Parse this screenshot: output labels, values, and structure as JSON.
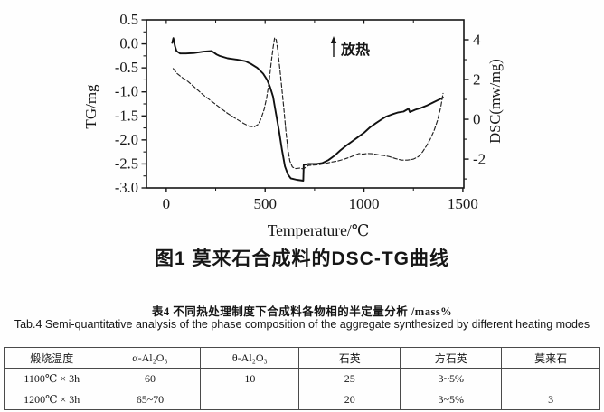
{
  "page": {
    "bg": "#fefefe",
    "ink": "#161616"
  },
  "figure": {
    "caption": "图1 莫来石合成料的DSC-TG曲线",
    "xlabel": "Temperature/℃",
    "ylabel_left": "TG/mg",
    "ylabel_right": "DSC(mw/mg)",
    "annotation_text": "放热",
    "annotation_icon": "up-arrow"
  },
  "chart_data": {
    "type": "line",
    "title": "图1 莫来石合成料的DSC-TG曲线",
    "xlabel": "Temperature/℃",
    "ylabel_left": "TG/mg",
    "ylabel_right": "DSC(mw/mg)",
    "xlim": [
      -100,
      1505
    ],
    "tg_ylim": [
      0.5,
      -3.0
    ],
    "dsc_ylim": [
      5.0,
      -3.45
    ],
    "x_ticks": [
      0,
      500,
      1000,
      1500
    ],
    "x_minor_ticks": [
      250,
      750,
      1250
    ],
    "tg_ticks": [
      0.5,
      0.0,
      -0.5,
      -1.0,
      -1.5,
      -2.0,
      -2.5,
      -3.0
    ],
    "tg_minor_ticks": [
      0.25,
      -0.25,
      -0.75,
      -1.25,
      -1.75,
      -2.25,
      -2.75
    ],
    "dsc_ticks": [
      4,
      2,
      0,
      -2
    ],
    "dsc_minor_ticks": [
      3,
      1,
      -1,
      -3
    ],
    "grid": false,
    "legend": "none",
    "annotation": {
      "text": "放热",
      "symbol": "up-arrow"
    },
    "series": [
      {
        "name": "TG",
        "axis": "left",
        "style": "solid",
        "color": "#111111",
        "points": [
          [
            30,
            0.02
          ],
          [
            36,
            0.12
          ],
          [
            44,
            -0.05
          ],
          [
            52,
            -0.15
          ],
          [
            70,
            -0.2
          ],
          [
            100,
            -0.2
          ],
          [
            140,
            -0.19
          ],
          [
            190,
            -0.16
          ],
          [
            230,
            -0.15
          ],
          [
            255,
            -0.22
          ],
          [
            270,
            -0.25
          ],
          [
            310,
            -0.3
          ],
          [
            360,
            -0.33
          ],
          [
            400,
            -0.36
          ],
          [
            430,
            -0.42
          ],
          [
            460,
            -0.5
          ],
          [
            490,
            -0.62
          ],
          [
            510,
            -0.75
          ],
          [
            525,
            -0.9
          ],
          [
            540,
            -1.1
          ],
          [
            555,
            -1.45
          ],
          [
            570,
            -1.8
          ],
          [
            585,
            -2.2
          ],
          [
            600,
            -2.55
          ],
          [
            615,
            -2.72
          ],
          [
            630,
            -2.8
          ],
          [
            660,
            -2.83
          ],
          [
            693,
            -2.85
          ],
          [
            695,
            -2.52
          ],
          [
            720,
            -2.5
          ],
          [
            760,
            -2.5
          ],
          [
            790,
            -2.48
          ],
          [
            820,
            -2.42
          ],
          [
            850,
            -2.33
          ],
          [
            880,
            -2.22
          ],
          [
            910,
            -2.12
          ],
          [
            940,
            -2.03
          ],
          [
            970,
            -1.94
          ],
          [
            1000,
            -1.85
          ],
          [
            1030,
            -1.74
          ],
          [
            1060,
            -1.65
          ],
          [
            1090,
            -1.57
          ],
          [
            1110,
            -1.52
          ],
          [
            1140,
            -1.47
          ],
          [
            1170,
            -1.43
          ],
          [
            1200,
            -1.41
          ],
          [
            1225,
            -1.35
          ],
          [
            1232,
            -1.42
          ],
          [
            1260,
            -1.37
          ],
          [
            1290,
            -1.33
          ],
          [
            1320,
            -1.28
          ],
          [
            1350,
            -1.22
          ],
          [
            1380,
            -1.16
          ],
          [
            1400,
            -1.12
          ]
        ]
      },
      {
        "name": "DSC",
        "axis": "right",
        "style": "dashed",
        "color": "#222222",
        "points": [
          [
            35,
            2.55
          ],
          [
            55,
            2.3
          ],
          [
            80,
            2.1
          ],
          [
            110,
            1.9
          ],
          [
            150,
            1.55
          ],
          [
            190,
            1.2
          ],
          [
            230,
            0.9
          ],
          [
            270,
            0.6
          ],
          [
            310,
            0.3
          ],
          [
            350,
            0.05
          ],
          [
            390,
            -0.2
          ],
          [
            420,
            -0.35
          ],
          [
            445,
            -0.38
          ],
          [
            465,
            -0.25
          ],
          [
            480,
            0.05
          ],
          [
            495,
            0.5
          ],
          [
            508,
            1.1
          ],
          [
            520,
            1.9
          ],
          [
            530,
            2.8
          ],
          [
            540,
            3.6
          ],
          [
            548,
            4.1
          ],
          [
            556,
            4.0
          ],
          [
            565,
            3.4
          ],
          [
            575,
            2.5
          ],
          [
            585,
            1.5
          ],
          [
            595,
            0.5
          ],
          [
            605,
            -0.6
          ],
          [
            615,
            -1.5
          ],
          [
            625,
            -2.1
          ],
          [
            638,
            -2.4
          ],
          [
            655,
            -2.48
          ],
          [
            675,
            -2.45
          ],
          [
            695,
            -2.5
          ],
          [
            705,
            -2.4
          ],
          [
            720,
            -2.32
          ],
          [
            745,
            -2.3
          ],
          [
            775,
            -2.28
          ],
          [
            805,
            -2.22
          ],
          [
            835,
            -2.15
          ],
          [
            865,
            -2.1
          ],
          [
            895,
            -2.02
          ],
          [
            925,
            -1.92
          ],
          [
            950,
            -1.82
          ],
          [
            975,
            -1.72
          ],
          [
            995,
            -1.75
          ],
          [
            1015,
            -1.72
          ],
          [
            1040,
            -1.73
          ],
          [
            1070,
            -1.78
          ],
          [
            1100,
            -1.82
          ],
          [
            1130,
            -1.88
          ],
          [
            1160,
            -1.98
          ],
          [
            1190,
            -2.05
          ],
          [
            1220,
            -2.05
          ],
          [
            1250,
            -2.0
          ],
          [
            1275,
            -1.88
          ],
          [
            1295,
            -1.65
          ],
          [
            1315,
            -1.35
          ],
          [
            1335,
            -1.0
          ],
          [
            1355,
            -0.55
          ],
          [
            1372,
            -0.05
          ],
          [
            1388,
            0.6
          ],
          [
            1400,
            1.3
          ]
        ]
      }
    ]
  },
  "table": {
    "caption_cn": "表4 不同热处理制度下合成料各物相的半定量分析 /mass%",
    "caption_en": "Tab.4 Semi-quantitative analysis of the phase composition of the aggregate synthesized by different heating modes",
    "headers": [
      "煅烧温度",
      "α-Al₂O₃",
      "θ-Al₂O₃",
      "石英",
      "方石英",
      "莫来石"
    ],
    "rows": [
      [
        "1100℃ × 3h",
        "60",
        "10",
        "25",
        "3~5%",
        ""
      ],
      [
        "1200℃ × 3h",
        "65~70",
        "",
        "20",
        "3~5%",
        "3"
      ]
    ]
  }
}
